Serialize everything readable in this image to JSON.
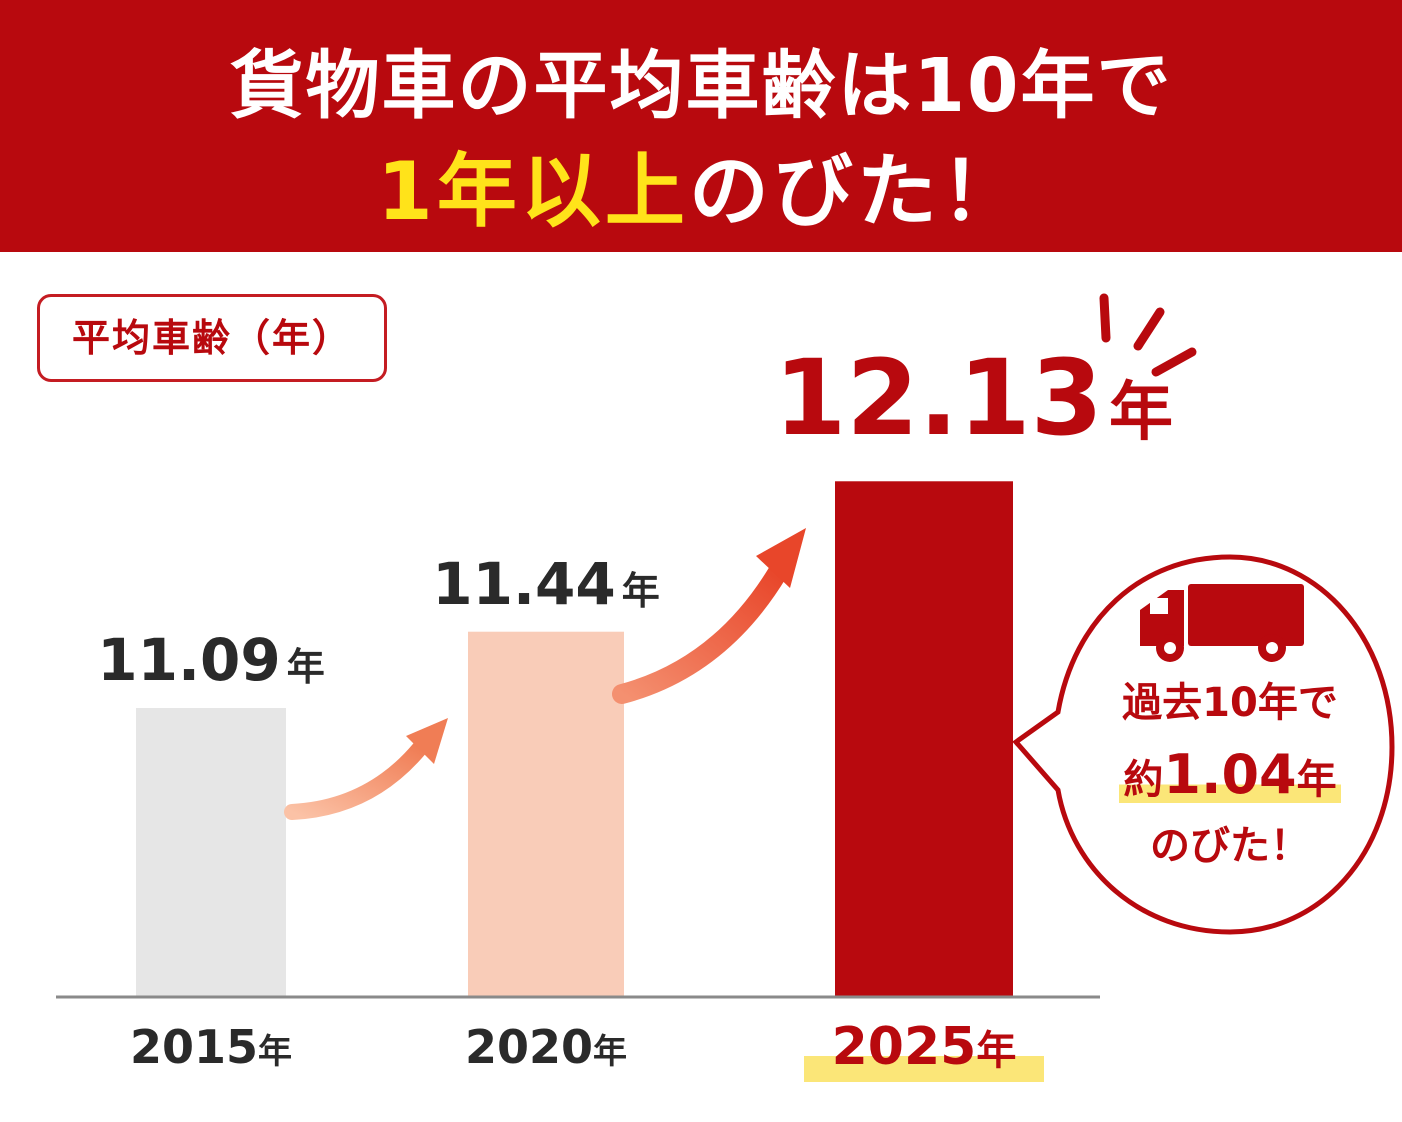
{
  "header": {
    "line1": "貨物車の平均車齢は10年で",
    "line2_highlight": "1年以上",
    "line2_rest": "のびた！",
    "bg_color": "#b8090e",
    "highlight_color": "#ffe31a"
  },
  "callout": {
    "icon": "truck-icon",
    "line1": "過去10年で",
    "line2_prefix": "約",
    "line2_value": "1.04",
    "line2_unit": "年",
    "line3": "のびた！"
  },
  "chart_data": {
    "type": "bar",
    "ylabel": "平均車齢（年）",
    "categories": [
      "2015",
      "2020",
      "2025"
    ],
    "category_unit": "年",
    "values": [
      11.09,
      11.44,
      12.13
    ],
    "value_labels": [
      "11.09",
      "11.44",
      "12.13"
    ],
    "value_unit": "年",
    "highlight_category": "2025",
    "bar_colors": [
      "#e6e6e6",
      "#f9ccb8",
      "#b8090e"
    ],
    "grid": false,
    "legend": "none"
  }
}
